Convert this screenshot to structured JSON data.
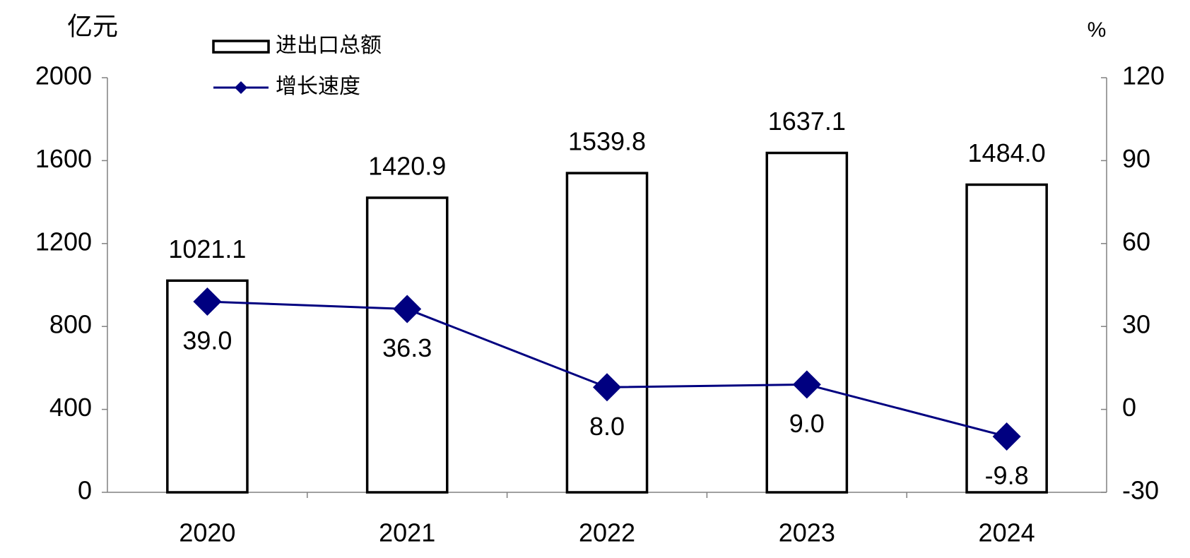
{
  "chart_data": {
    "type": "bar",
    "y_unit": "亿元",
    "y2_unit": "%",
    "categories": [
      "2020",
      "2021",
      "2022",
      "2023",
      "2024"
    ],
    "series": [
      {
        "name": "进出口总额",
        "type": "bar",
        "color": "#ffffff",
        "edge_color": "#000000",
        "values": [
          1021.1,
          1420.9,
          1539.8,
          1637.1,
          1484
        ],
        "value_labels": [
          "1021.1",
          "1420.9",
          "1539.8",
          "1637.1",
          "1484.0"
        ]
      },
      {
        "name": "增长速度",
        "type": "line",
        "axis": "y2",
        "color": "#000080",
        "values": [
          39,
          36.3,
          8,
          9,
          -9.8
        ],
        "value_labels": [
          "39.0",
          "36.3",
          "8.0",
          "9.0",
          "-9.8"
        ]
      }
    ],
    "ylim": [
      0,
      2000
    ],
    "yticks": [
      0,
      400,
      800,
      1200,
      1600,
      2000
    ],
    "y2lim": [
      -30,
      120
    ],
    "y2ticks": [
      -30,
      0,
      30,
      60,
      90,
      120
    ],
    "grid": false
  }
}
